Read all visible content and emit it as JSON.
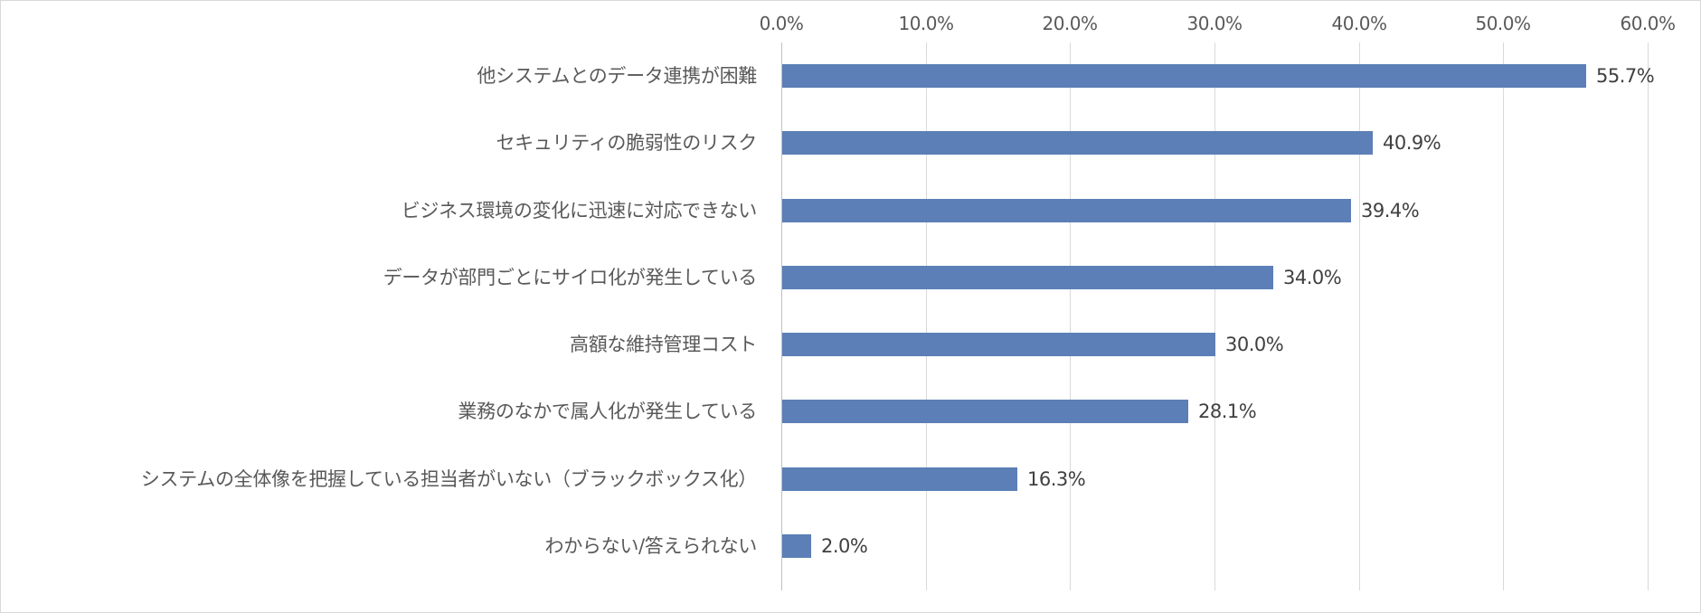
{
  "chart_data": {
    "type": "bar",
    "orientation": "horizontal",
    "title": "",
    "xlabel": "",
    "ylabel": "",
    "xlim": [
      0,
      60
    ],
    "x_ticks": [
      "0.0%",
      "10.0%",
      "20.0%",
      "30.0%",
      "40.0%",
      "50.0%",
      "60.0%"
    ],
    "x_axis_position": "top",
    "grid": true,
    "legend": null,
    "bar_color": "#5b7fb6",
    "categories": [
      "他システムとのデータ連携が困難",
      "セキュリティの脆弱性のリスク",
      "ビジネス環境の変化に迅速に対応できない",
      "データが部門ごとにサイロ化が発生している",
      "高額な維持管理コスト",
      "業務のなかで属人化が発生している",
      "システムの全体像を把握している担当者がいない（ブラックボックス化）",
      "わからない/答えられない"
    ],
    "values": [
      55.7,
      40.9,
      39.4,
      34.0,
      30.0,
      28.1,
      16.3,
      2.0
    ],
    "value_labels": [
      "55.7%",
      "40.9%",
      "39.4%",
      "34.0%",
      "30.0%",
      "28.1%",
      "16.3%",
      "2.0%"
    ]
  }
}
